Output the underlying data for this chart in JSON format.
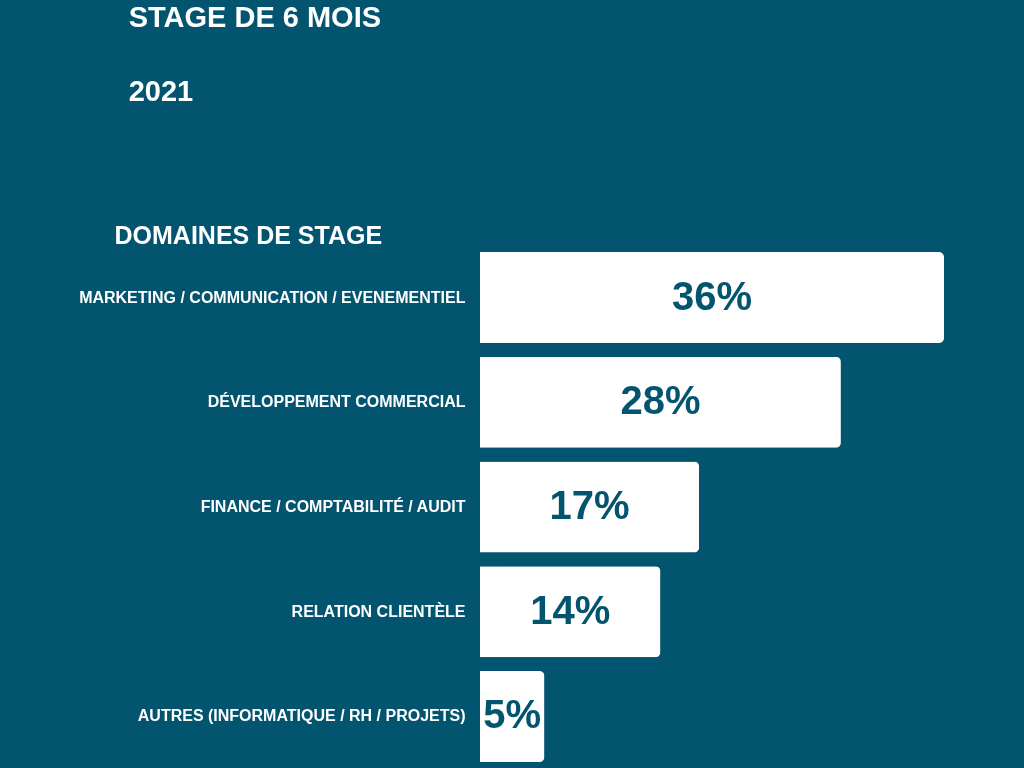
{
  "chart_data": {
    "type": "bar",
    "title": "STAGE DE 6 MOIS",
    "subtitle": "2021",
    "ylabel": "DOMAINES DE STAGE",
    "orientation": "horizontal",
    "tick_labels": "y",
    "categories": [
      "MARKETING / COMMUNICATION / EVENEMENTIEL",
      "DÉVELOPPEMENT COMMERCIAL",
      "FINANCE / COMPTABILITÉ / AUDIT",
      "RELATION CLIENTÈLE",
      "AUTRES (INFORMATIQUE / RH / PROJETS)"
    ],
    "values": [
      36,
      28,
      17,
      14,
      5
    ],
    "value_labels": [
      "36%",
      "28%",
      "17%",
      "14%",
      "5%"
    ],
    "color": "#ffffff"
  }
}
